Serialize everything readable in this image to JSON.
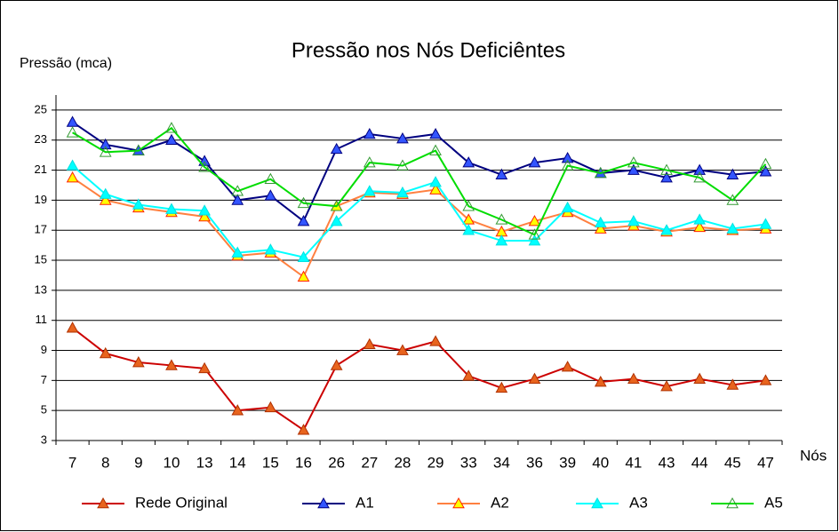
{
  "chart_data": {
    "type": "line",
    "title": "Pressão nos Nós Deficiêntes",
    "y_label": "Pressão (mca)",
    "x_label": "Nós",
    "categories": [
      "7",
      "8",
      "9",
      "10",
      "13",
      "14",
      "15",
      "16",
      "26",
      "27",
      "28",
      "29",
      "33",
      "34",
      "36",
      "39",
      "40",
      "41",
      "43",
      "44",
      "45",
      "47"
    ],
    "series": [
      {
        "name": "Rede Original",
        "color": "#cc0000",
        "marker_fill": "#e8641e",
        "marker_stroke": "#b03000",
        "values": [
          10.5,
          8.8,
          8.2,
          8.0,
          7.8,
          5.0,
          5.2,
          3.7,
          8.0,
          9.4,
          9.0,
          9.6,
          7.3,
          6.5,
          7.1,
          7.9,
          6.9,
          7.1,
          6.6,
          7.1,
          6.7,
          7.0
        ]
      },
      {
        "name": "A1",
        "color": "#000080",
        "marker_fill": "#3355ff",
        "marker_stroke": "#000080",
        "values": [
          24.2,
          22.7,
          22.3,
          23.0,
          21.6,
          19.0,
          19.3,
          17.6,
          22.4,
          23.4,
          23.1,
          23.4,
          21.5,
          20.7,
          21.5,
          21.8,
          20.8,
          21.0,
          20.5,
          21.0,
          20.7,
          20.9
        ]
      },
      {
        "name": "A2",
        "color": "#ff8040",
        "marker_fill": "#ffff00",
        "marker_stroke": "#ff2000",
        "values": [
          20.5,
          19.0,
          18.5,
          18.2,
          17.9,
          15.3,
          15.5,
          13.9,
          18.6,
          19.5,
          19.4,
          19.7,
          17.7,
          16.9,
          17.6,
          18.2,
          17.1,
          17.3,
          16.9,
          17.2,
          17.0,
          17.1
        ]
      },
      {
        "name": "A3",
        "color": "#00ffff",
        "marker_fill": "#00ffff",
        "marker_stroke": "#00e0e0",
        "values": [
          21.3,
          19.4,
          18.7,
          18.4,
          18.3,
          15.5,
          15.7,
          15.2,
          17.6,
          19.6,
          19.5,
          20.2,
          17.0,
          16.3,
          16.3,
          18.5,
          17.5,
          17.6,
          17.0,
          17.7,
          17.1,
          17.4
        ]
      },
      {
        "name": "A5",
        "color": "#00dd00",
        "marker_fill": "none",
        "marker_stroke": "#339933",
        "values": [
          23.5,
          22.2,
          22.3,
          23.8,
          21.2,
          19.6,
          20.4,
          18.8,
          18.6,
          21.5,
          21.3,
          22.3,
          18.6,
          17.7,
          16.7,
          21.3,
          20.8,
          21.5,
          21.0,
          20.5,
          19.0,
          21.4
        ]
      }
    ],
    "ylim": [
      3,
      26
    ],
    "yticks": [
      3,
      5,
      7,
      9,
      11,
      13,
      15,
      17,
      19,
      21,
      23,
      25
    ],
    "grid": true,
    "legend": "bottom"
  }
}
